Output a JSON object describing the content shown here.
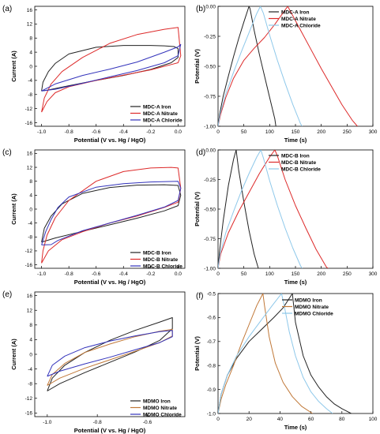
{
  "chart_data": [
    {
      "panel": "(a)",
      "type": "line",
      "xlabel": "Potential (V vs. Hg / HgO)",
      "ylabel": "Current (A)",
      "xlim": [
        -1.05,
        0.05
      ],
      "ylim": [
        -17,
        17
      ],
      "xticks": [
        -1.0,
        -0.8,
        -0.6,
        -0.4,
        -0.2,
        0.0
      ],
      "xticklabels": [
        "-1.0",
        "-0.8",
        "-0.6",
        "-0.4",
        "-0.2",
        "0.0"
      ],
      "yticks": [
        -16,
        -12,
        -8,
        -4,
        0,
        4,
        8,
        12,
        16
      ],
      "yticklabels": [
        "-16",
        "-12",
        "-8",
        "-4",
        "0",
        "4",
        "8",
        "12",
        "16"
      ],
      "legend": "bottom-right",
      "series": [
        {
          "name": "MDC-A Iron",
          "color": "#222222",
          "x": [
            -1.0,
            -0.99,
            -0.95,
            -0.9,
            -0.8,
            -0.6,
            -0.4,
            -0.2,
            -0.1,
            -0.03,
            0.0,
            0.0,
            -0.05,
            -0.2,
            -0.4,
            -0.6,
            -0.8,
            -0.95,
            -1.0
          ],
          "y": [
            -7,
            -4.5,
            -1.5,
            0.8,
            3.5,
            5.4,
            5.9,
            5.9,
            5.8,
            5.6,
            5.0,
            2.5,
            1.0,
            -0.9,
            -2.6,
            -4.0,
            -5.5,
            -6.7,
            -7
          ]
        },
        {
          "name": "MDC-A Nitrate",
          "color": "#dd2a2a",
          "x": [
            -1.0,
            -0.98,
            -0.93,
            -0.85,
            -0.7,
            -0.5,
            -0.3,
            -0.1,
            0.0,
            0.02,
            0.0,
            -0.05,
            -0.2,
            -0.4,
            -0.6,
            -0.8,
            -0.9,
            -0.96,
            -1.0
          ],
          "y": [
            -13,
            -9,
            -5,
            -1.5,
            2.5,
            6.5,
            9.0,
            10.5,
            11.0,
            3.0,
            1.0,
            0.5,
            -1.0,
            -2.5,
            -4.0,
            -5.8,
            -7.5,
            -10,
            -13
          ]
        },
        {
          "name": "MDC-A Chloride",
          "color": "#3333bb",
          "x": [
            -1.0,
            -0.9,
            -0.7,
            -0.5,
            -0.3,
            -0.1,
            0.0,
            0.02,
            0.0,
            -0.1,
            -0.3,
            -0.5,
            -0.7,
            -0.9,
            -1.0
          ],
          "y": [
            -7.0,
            -5.0,
            -2.6,
            -0.8,
            1.2,
            4.0,
            5.5,
            6.2,
            3.0,
            1.0,
            -1.2,
            -3.0,
            -4.8,
            -6.5,
            -7.0
          ]
        }
      ]
    },
    {
      "panel": "(b)",
      "type": "line",
      "xlabel": "Time (s)",
      "ylabel": "Potential (V)",
      "xlim": [
        0,
        300
      ],
      "ylim": [
        -1.0,
        0.0
      ],
      "xticks": [
        0,
        50,
        100,
        150,
        200,
        250,
        300
      ],
      "xticklabels": [
        "0",
        "50",
        "100",
        "150",
        "200",
        "250",
        "300"
      ],
      "yticks": [
        -1.0,
        -0.75,
        -0.5,
        -0.25,
        0.0
      ],
      "yticklabels": [
        "-1.00",
        "-0.75",
        "-0.50",
        "-0.25",
        "0.00"
      ],
      "legend": "top-right",
      "series": [
        {
          "name": "MDC-A Iron",
          "color": "#222222",
          "x": [
            0,
            3,
            10,
            20,
            30,
            40,
            50,
            60,
            62,
            70,
            80,
            90,
            100,
            110,
            112
          ],
          "y": [
            -1.0,
            -0.9,
            -0.75,
            -0.58,
            -0.42,
            -0.27,
            -0.13,
            0.0,
            -0.02,
            -0.2,
            -0.4,
            -0.58,
            -0.76,
            -0.94,
            -1.0
          ]
        },
        {
          "name": "MDC-A Nitrate",
          "color": "#dd2a2a",
          "x": [
            0,
            5,
            15,
            30,
            50,
            70,
            90,
            110,
            135,
            140,
            160,
            180,
            200,
            220,
            240,
            260,
            270
          ],
          "y": [
            -1.0,
            -0.9,
            -0.76,
            -0.6,
            -0.45,
            -0.35,
            -0.26,
            -0.15,
            0.0,
            -0.04,
            -0.2,
            -0.36,
            -0.52,
            -0.67,
            -0.82,
            -0.95,
            -1.0
          ]
        },
        {
          "name": "MDC-A Chloride",
          "color": "#8ec8ea",
          "x": [
            0,
            4,
            15,
            30,
            45,
            60,
            75,
            82,
            88,
            100,
            115,
            130,
            145,
            160,
            163
          ],
          "y": [
            -1.0,
            -0.9,
            -0.73,
            -0.55,
            -0.38,
            -0.22,
            -0.06,
            0.0,
            -0.06,
            -0.24,
            -0.45,
            -0.64,
            -0.82,
            -0.98,
            -1.0
          ]
        }
      ]
    },
    {
      "panel": "(c)",
      "type": "line",
      "xlabel": "Potential (V vs. Hg / HgO)",
      "ylabel": "Current (A)",
      "xlim": [
        -1.05,
        0.05
      ],
      "ylim": [
        -17,
        17
      ],
      "xticks": [
        -1.0,
        -0.8,
        -0.6,
        -0.4,
        -0.2,
        0.0
      ],
      "xticklabels": [
        "-1.0",
        "-0.8",
        "-0.6",
        "-0.4",
        "-0.2",
        "0.0"
      ],
      "yticks": [
        -16,
        -12,
        -8,
        -4,
        0,
        4,
        8,
        12,
        16
      ],
      "yticklabels": [
        "-16",
        "-12",
        "-8",
        "-4",
        "0",
        "4",
        "8",
        "12",
        "16"
      ],
      "legend": "bottom-right",
      "series": [
        {
          "name": "MDC-B Iron",
          "color": "#222222",
          "x": [
            -1.0,
            -0.98,
            -0.93,
            -0.85,
            -0.7,
            -0.5,
            -0.3,
            -0.1,
            0.0,
            0.02,
            0.0,
            -0.1,
            -0.3,
            -0.5,
            -0.7,
            -0.9,
            -1.0
          ],
          "y": [
            -9.5,
            -5.5,
            -2.0,
            1.5,
            4.5,
            6.2,
            6.9,
            7.0,
            6.8,
            4.0,
            1.0,
            -0.5,
            -2.6,
            -4.5,
            -6.4,
            -8.3,
            -9.5
          ]
        },
        {
          "name": "MDC-B Nitrate",
          "color": "#dd2a2a",
          "x": [
            -1.0,
            -0.99,
            -0.96,
            -0.9,
            -0.8,
            -0.6,
            -0.4,
            -0.2,
            -0.05,
            0.0,
            0.02,
            0.0,
            -0.1,
            -0.3,
            -0.5,
            -0.7,
            -0.85,
            -0.95,
            -1.0
          ],
          "y": [
            -15.5,
            -12,
            -7.5,
            -2.5,
            2.5,
            8.0,
            10.8,
            11.8,
            12.0,
            11.8,
            6.0,
            2.0,
            0.5,
            -2.0,
            -4.0,
            -6.5,
            -8.8,
            -12,
            -15.5
          ]
        },
        {
          "name": "MDC-B Chloride",
          "color": "#3333bb",
          "x": [
            -1.0,
            -0.97,
            -0.93,
            -0.88,
            -0.8,
            -0.6,
            -0.4,
            -0.2,
            0.0,
            0.02,
            0.0,
            -0.1,
            -0.3,
            -0.5,
            -0.7,
            -0.88,
            -0.93,
            -1.0
          ],
          "y": [
            -10.3,
            -6.5,
            -3.0,
            0.5,
            3.5,
            6.3,
            7.3,
            7.8,
            8.0,
            6.0,
            2.5,
            0.6,
            -1.8,
            -4.0,
            -6.2,
            -9.0,
            -10.2,
            -10.3
          ]
        }
      ]
    },
    {
      "panel": "(d)",
      "type": "line",
      "xlabel": "Time (s)",
      "ylabel": "Potential (V)",
      "xlim": [
        0,
        300
      ],
      "ylim": [
        -1.0,
        0.0
      ],
      "xticks": [
        0,
        50,
        100,
        150,
        200,
        250,
        300
      ],
      "xticklabels": [
        "0",
        "50",
        "100",
        "150",
        "200",
        "250",
        "300"
      ],
      "yticks": [
        -1.0,
        -0.75,
        -0.5,
        -0.25,
        0.0
      ],
      "yticklabels": [
        "-1.00",
        "-0.75",
        "-0.50",
        "-0.25",
        "0.00"
      ],
      "legend": "top-right",
      "series": [
        {
          "name": "MDC-B Iron",
          "color": "#222222",
          "x": [
            0,
            3,
            10,
            20,
            30,
            35,
            40,
            50,
            60,
            70,
            78
          ],
          "y": [
            -1.0,
            -0.85,
            -0.6,
            -0.3,
            -0.08,
            0.0,
            -0.17,
            -0.44,
            -0.68,
            -0.88,
            -1.0
          ]
        },
        {
          "name": "MDC-B Nitrate",
          "color": "#dd2a2a",
          "x": [
            0,
            5,
            20,
            40,
            60,
            80,
            100,
            110,
            115,
            130,
            150,
            170,
            190,
            210,
            213
          ],
          "y": [
            -1.0,
            -0.88,
            -0.7,
            -0.52,
            -0.36,
            -0.2,
            -0.06,
            0.0,
            -0.05,
            -0.25,
            -0.47,
            -0.66,
            -0.84,
            -0.99,
            -1.0
          ]
        },
        {
          "name": "MDC-B Chloride",
          "color": "#8ec8ea",
          "x": [
            0,
            4,
            15,
            30,
            45,
            60,
            75,
            83,
            88,
            100,
            115,
            130,
            145,
            160,
            163
          ],
          "y": [
            -1.0,
            -0.88,
            -0.7,
            -0.52,
            -0.35,
            -0.2,
            -0.06,
            0.0,
            -0.07,
            -0.26,
            -0.47,
            -0.66,
            -0.83,
            -0.98,
            -1.0
          ]
        }
      ]
    },
    {
      "panel": "(e)",
      "type": "line",
      "xlabel": "Potential (V vs. Hg / HgO)",
      "ylabel": "Current (A)",
      "xlim": [
        -1.05,
        -0.45
      ],
      "ylim": [
        -17,
        17
      ],
      "xticks": [
        -1.0,
        -0.8,
        -0.6
      ],
      "xticklabels": [
        "-1.0",
        "-0.8",
        "-0.6"
      ],
      "yticks": [
        -16,
        -12,
        -8,
        -4,
        0,
        4,
        8,
        12,
        16
      ],
      "yticklabels": [
        "-16",
        "-12",
        "-8",
        "-4",
        "0",
        "4",
        "8",
        "12",
        "16"
      ],
      "legend": "bottom-right",
      "series": [
        {
          "name": "MDMO Iron",
          "color": "#222222",
          "x": [
            -1.0,
            -0.98,
            -0.93,
            -0.85,
            -0.75,
            -0.65,
            -0.55,
            -0.5,
            -0.5,
            -0.55,
            -0.65,
            -0.75,
            -0.85,
            -0.95,
            -1.0
          ],
          "y": [
            -10,
            -6.5,
            -3.0,
            0.5,
            3.8,
            6.5,
            8.8,
            10.0,
            7.0,
            3.8,
            0.6,
            -2.2,
            -5.0,
            -8.0,
            -10
          ]
        },
        {
          "name": "MDMO Nitrate",
          "color": "#c07838",
          "x": [
            -1.0,
            -0.98,
            -0.93,
            -0.85,
            -0.75,
            -0.65,
            -0.55,
            -0.5,
            -0.5,
            -0.55,
            -0.65,
            -0.75,
            -0.85,
            -0.95,
            -1.0
          ],
          "y": [
            -8.5,
            -5.5,
            -2.5,
            0.5,
            2.8,
            4.8,
            6.3,
            6.8,
            5.0,
            3.2,
            0.8,
            -1.5,
            -3.8,
            -6.5,
            -8.5
          ]
        },
        {
          "name": "MDMO Chloride",
          "color": "#3333bb",
          "x": [
            -1.0,
            -0.98,
            -0.93,
            -0.85,
            -0.75,
            -0.65,
            -0.55,
            -0.5,
            -0.5,
            -0.55,
            -0.65,
            -0.75,
            -0.85,
            -0.95,
            -1.0
          ],
          "y": [
            -6.0,
            -3.0,
            -0.5,
            1.8,
            3.6,
            5.0,
            6.2,
            6.5,
            4.8,
            3.2,
            1.2,
            -0.8,
            -2.6,
            -4.6,
            -6.0
          ]
        }
      ]
    },
    {
      "panel": "(f)",
      "type": "line",
      "xlabel": "Time (s)",
      "ylabel": "Potential (V)",
      "xlim": [
        0,
        100
      ],
      "ylim": [
        -1.0,
        -0.5
      ],
      "xticks": [
        0,
        20,
        40,
        60,
        80,
        100
      ],
      "xticklabels": [
        "0",
        "20",
        "40",
        "60",
        "80",
        "100"
      ],
      "yticks": [
        -1.0,
        -0.9,
        -0.8,
        -0.7,
        -0.6,
        -0.5
      ],
      "yticklabels": [
        "-1.0",
        "-0.9",
        "-0.8",
        "-0.7",
        "-0.6",
        "-0.5"
      ],
      "legend": "top-right",
      "series": [
        {
          "name": "MDMO Iron",
          "color": "#222222",
          "x": [
            0,
            2,
            6,
            12,
            20,
            28,
            36,
            42,
            48,
            50,
            55,
            60,
            65,
            70,
            75,
            80,
            86
          ],
          "y": [
            -1.0,
            -0.92,
            -0.84,
            -0.77,
            -0.7,
            -0.65,
            -0.6,
            -0.56,
            -0.5,
            -0.62,
            -0.76,
            -0.84,
            -0.89,
            -0.93,
            -0.96,
            -0.98,
            -1.0
          ]
        },
        {
          "name": "MDMO Nitrate",
          "color": "#c07838",
          "x": [
            0,
            2,
            5,
            10,
            15,
            20,
            25,
            29,
            30,
            33,
            37,
            42,
            48,
            54,
            61
          ],
          "y": [
            -1.0,
            -0.94,
            -0.88,
            -0.8,
            -0.71,
            -0.63,
            -0.55,
            -0.5,
            -0.55,
            -0.68,
            -0.79,
            -0.87,
            -0.93,
            -0.97,
            -1.0
          ]
        },
        {
          "name": "MDMO Chloride",
          "color": "#8ec8ea",
          "x": [
            0,
            2,
            6,
            12,
            20,
            28,
            35,
            41,
            43,
            46,
            50,
            55,
            60,
            65,
            70,
            74
          ],
          "y": [
            -1.0,
            -0.92,
            -0.84,
            -0.76,
            -0.68,
            -0.61,
            -0.55,
            -0.5,
            -0.56,
            -0.66,
            -0.76,
            -0.85,
            -0.91,
            -0.95,
            -0.98,
            -1.0
          ]
        }
      ]
    }
  ]
}
